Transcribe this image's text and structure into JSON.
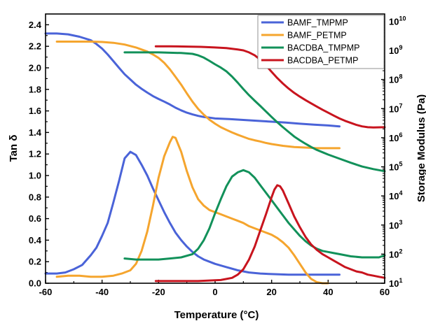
{
  "chart_data": {
    "type": "line",
    "xlabel": "Temperature (°C)",
    "ylabel": "Tan δ",
    "y2label": "Storage Modulus (Pa)",
    "xlim": [
      -60,
      60
    ],
    "ylim": [
      0,
      2.5
    ],
    "y2lim_log10": [
      1,
      10.25
    ],
    "x_ticks": [
      "-60",
      "-40",
      "-20",
      "0",
      "20",
      "40",
      "60"
    ],
    "y_ticks": [
      "0.0",
      "0.2",
      "0.4",
      "0.6",
      "0.8",
      "1.0",
      "1.2",
      "1.4",
      "1.6",
      "1.8",
      "2.0",
      "2.2",
      "2.4"
    ],
    "y2_ticks": [
      {
        "base": "10",
        "exp": "1"
      },
      {
        "base": "10",
        "exp": "2"
      },
      {
        "base": "10",
        "exp": "3"
      },
      {
        "base": "10",
        "exp": "4"
      },
      {
        "base": "10",
        "exp": "5"
      },
      {
        "base": "10",
        "exp": "6"
      },
      {
        "base": "10",
        "exp": "7"
      },
      {
        "base": "10",
        "exp": "8"
      },
      {
        "base": "10",
        "exp": "9"
      },
      {
        "base": "10",
        "exp": "10"
      }
    ],
    "legend_position": "top-right",
    "series": [
      {
        "name": "BAMF_TMPMP",
        "color": "#4a63d8",
        "tan_delta": [
          [
            -60,
            0.09
          ],
          [
            -56,
            0.09
          ],
          [
            -53,
            0.1
          ],
          [
            -50,
            0.13
          ],
          [
            -47,
            0.17
          ],
          [
            -44,
            0.26
          ],
          [
            -42,
            0.33
          ],
          [
            -40,
            0.44
          ],
          [
            -38,
            0.56
          ],
          [
            -36,
            0.75
          ],
          [
            -34,
            0.95
          ],
          [
            -32,
            1.16
          ],
          [
            -30,
            1.22
          ],
          [
            -28,
            1.19
          ],
          [
            -26,
            1.1
          ],
          [
            -24,
            1.0
          ],
          [
            -22,
            0.88
          ],
          [
            -20,
            0.77
          ],
          [
            -18,
            0.66
          ],
          [
            -16,
            0.56
          ],
          [
            -14,
            0.47
          ],
          [
            -12,
            0.4
          ],
          [
            -10,
            0.34
          ],
          [
            -8,
            0.29
          ],
          [
            -6,
            0.25
          ],
          [
            -4,
            0.22
          ],
          [
            -2,
            0.2
          ],
          [
            0,
            0.18
          ],
          [
            4,
            0.15
          ],
          [
            8,
            0.12
          ],
          [
            12,
            0.1
          ],
          [
            16,
            0.09
          ],
          [
            20,
            0.085
          ],
          [
            26,
            0.08
          ],
          [
            32,
            0.08
          ],
          [
            38,
            0.08
          ],
          [
            44,
            0.08
          ]
        ],
        "modulus_log10": [
          [
            -60,
            9.58
          ],
          [
            -56,
            9.58
          ],
          [
            -52,
            9.55
          ],
          [
            -48,
            9.47
          ],
          [
            -44,
            9.35
          ],
          [
            -42,
            9.22
          ],
          [
            -40,
            9.06
          ],
          [
            -38,
            8.86
          ],
          [
            -36,
            8.63
          ],
          [
            -34,
            8.4
          ],
          [
            -32,
            8.18
          ],
          [
            -30,
            8.0
          ],
          [
            -28,
            7.82
          ],
          [
            -26,
            7.68
          ],
          [
            -24,
            7.55
          ],
          [
            -22,
            7.43
          ],
          [
            -20,
            7.33
          ],
          [
            -18,
            7.24
          ],
          [
            -16,
            7.14
          ],
          [
            -14,
            7.03
          ],
          [
            -12,
            6.94
          ],
          [
            -10,
            6.86
          ],
          [
            -8,
            6.8
          ],
          [
            -6,
            6.75
          ],
          [
            -4,
            6.71
          ],
          [
            -2,
            6.69
          ],
          [
            0,
            6.66
          ],
          [
            5,
            6.64
          ],
          [
            10,
            6.61
          ],
          [
            15,
            6.58
          ],
          [
            20,
            6.55
          ],
          [
            25,
            6.52
          ],
          [
            30,
            6.48
          ],
          [
            35,
            6.45
          ],
          [
            40,
            6.42
          ],
          [
            44,
            6.39
          ]
        ]
      },
      {
        "name": "BAMF_PETMP",
        "color": "#f5a52e",
        "tan_delta": [
          [
            -56,
            0.06
          ],
          [
            -52,
            0.07
          ],
          [
            -48,
            0.07
          ],
          [
            -44,
            0.06
          ],
          [
            -40,
            0.06
          ],
          [
            -36,
            0.07
          ],
          [
            -33,
            0.09
          ],
          [
            -30,
            0.12
          ],
          [
            -28,
            0.18
          ],
          [
            -26,
            0.3
          ],
          [
            -24,
            0.48
          ],
          [
            -22,
            0.72
          ],
          [
            -20,
            0.98
          ],
          [
            -18,
            1.18
          ],
          [
            -16,
            1.31
          ],
          [
            -15,
            1.36
          ],
          [
            -14,
            1.35
          ],
          [
            -12,
            1.22
          ],
          [
            -10,
            1.04
          ],
          [
            -8,
            0.89
          ],
          [
            -6,
            0.78
          ],
          [
            -4,
            0.72
          ],
          [
            -2,
            0.68
          ],
          [
            0,
            0.66
          ],
          [
            2,
            0.64
          ],
          [
            4,
            0.62
          ],
          [
            6,
            0.6
          ],
          [
            8,
            0.58
          ],
          [
            10,
            0.56
          ],
          [
            12,
            0.53
          ],
          [
            14,
            0.51
          ],
          [
            16,
            0.49
          ],
          [
            18,
            0.47
          ],
          [
            20,
            0.45
          ],
          [
            22,
            0.42
          ],
          [
            24,
            0.38
          ],
          [
            26,
            0.33
          ],
          [
            28,
            0.26
          ],
          [
            30,
            0.18
          ],
          [
            32,
            0.1
          ],
          [
            34,
            0.04
          ],
          [
            36,
            0.01
          ],
          [
            38,
            0.0
          ],
          [
            40,
            0.0
          ]
        ],
        "modulus_log10": [
          [
            -56,
            9.3
          ],
          [
            -52,
            9.3
          ],
          [
            -48,
            9.3
          ],
          [
            -44,
            9.3
          ],
          [
            -40,
            9.29
          ],
          [
            -36,
            9.26
          ],
          [
            -32,
            9.2
          ],
          [
            -28,
            9.1
          ],
          [
            -26,
            9.03
          ],
          [
            -24,
            8.96
          ],
          [
            -22,
            8.86
          ],
          [
            -20,
            8.74
          ],
          [
            -18,
            8.57
          ],
          [
            -16,
            8.35
          ],
          [
            -14,
            8.09
          ],
          [
            -12,
            7.82
          ],
          [
            -10,
            7.52
          ],
          [
            -8,
            7.24
          ],
          [
            -6,
            6.99
          ],
          [
            -4,
            6.79
          ],
          [
            -2,
            6.62
          ],
          [
            0,
            6.48
          ],
          [
            2,
            6.36
          ],
          [
            4,
            6.27
          ],
          [
            6,
            6.18
          ],
          [
            8,
            6.1
          ],
          [
            10,
            6.03
          ],
          [
            12,
            5.96
          ],
          [
            14,
            5.91
          ],
          [
            16,
            5.87
          ],
          [
            18,
            5.82
          ],
          [
            20,
            5.78
          ],
          [
            24,
            5.72
          ],
          [
            28,
            5.68
          ],
          [
            32,
            5.66
          ],
          [
            36,
            5.64
          ],
          [
            40,
            5.64
          ],
          [
            44,
            5.64
          ]
        ]
      },
      {
        "name": "BACDBA_TMPMP",
        "color": "#12915a",
        "tan_delta": [
          [
            -32,
            0.23
          ],
          [
            -28,
            0.22
          ],
          [
            -24,
            0.22
          ],
          [
            -20,
            0.22
          ],
          [
            -16,
            0.23
          ],
          [
            -12,
            0.24
          ],
          [
            -8,
            0.27
          ],
          [
            -6,
            0.32
          ],
          [
            -4,
            0.4
          ],
          [
            -2,
            0.51
          ],
          [
            0,
            0.65
          ],
          [
            2,
            0.78
          ],
          [
            4,
            0.9
          ],
          [
            6,
            0.99
          ],
          [
            8,
            1.03
          ],
          [
            10,
            1.05
          ],
          [
            12,
            1.03
          ],
          [
            14,
            0.98
          ],
          [
            16,
            0.91
          ],
          [
            18,
            0.84
          ],
          [
            20,
            0.77
          ],
          [
            22,
            0.7
          ],
          [
            24,
            0.63
          ],
          [
            26,
            0.56
          ],
          [
            28,
            0.5
          ],
          [
            30,
            0.44
          ],
          [
            32,
            0.39
          ],
          [
            34,
            0.35
          ],
          [
            36,
            0.32
          ],
          [
            38,
            0.3
          ],
          [
            40,
            0.29
          ],
          [
            42,
            0.28
          ],
          [
            44,
            0.27
          ],
          [
            48,
            0.25
          ],
          [
            52,
            0.24
          ],
          [
            56,
            0.24
          ],
          [
            58,
            0.24
          ],
          [
            60,
            0.26
          ]
        ],
        "modulus_log10": [
          [
            -32,
            8.93
          ],
          [
            -28,
            8.93
          ],
          [
            -24,
            8.93
          ],
          [
            -20,
            8.93
          ],
          [
            -16,
            8.92
          ],
          [
            -12,
            8.91
          ],
          [
            -8,
            8.88
          ],
          [
            -6,
            8.83
          ],
          [
            -4,
            8.75
          ],
          [
            -2,
            8.64
          ],
          [
            0,
            8.52
          ],
          [
            2,
            8.41
          ],
          [
            4,
            8.28
          ],
          [
            6,
            8.1
          ],
          [
            8,
            7.89
          ],
          [
            10,
            7.67
          ],
          [
            12,
            7.46
          ],
          [
            14,
            7.27
          ],
          [
            16,
            7.09
          ],
          [
            18,
            6.9
          ],
          [
            20,
            6.71
          ],
          [
            22,
            6.53
          ],
          [
            24,
            6.36
          ],
          [
            26,
            6.2
          ],
          [
            28,
            6.04
          ],
          [
            30,
            5.91
          ],
          [
            32,
            5.79
          ],
          [
            34,
            5.68
          ],
          [
            36,
            5.58
          ],
          [
            38,
            5.5
          ],
          [
            40,
            5.42
          ],
          [
            44,
            5.28
          ],
          [
            48,
            5.14
          ],
          [
            52,
            5.01
          ],
          [
            56,
            4.92
          ],
          [
            60,
            4.85
          ]
        ]
      },
      {
        "name": "BACDBA_PETMP",
        "color": "#c8141e",
        "tan_delta": [
          [
            -21,
            0.02
          ],
          [
            -15,
            0.02
          ],
          [
            -10,
            0.02
          ],
          [
            -6,
            0.02
          ],
          [
            -2,
            0.025
          ],
          [
            2,
            0.03
          ],
          [
            6,
            0.05
          ],
          [
            8,
            0.08
          ],
          [
            10,
            0.13
          ],
          [
            12,
            0.22
          ],
          [
            14,
            0.34
          ],
          [
            16,
            0.49
          ],
          [
            18,
            0.64
          ],
          [
            20,
            0.8
          ],
          [
            21,
            0.87
          ],
          [
            22,
            0.91
          ],
          [
            23,
            0.9
          ],
          [
            24,
            0.86
          ],
          [
            26,
            0.74
          ],
          [
            28,
            0.62
          ],
          [
            30,
            0.52
          ],
          [
            32,
            0.43
          ],
          [
            34,
            0.36
          ],
          [
            36,
            0.31
          ],
          [
            38,
            0.27
          ],
          [
            40,
            0.24
          ],
          [
            42,
            0.21
          ],
          [
            44,
            0.18
          ],
          [
            46,
            0.15
          ],
          [
            48,
            0.13
          ],
          [
            50,
            0.11
          ],
          [
            52,
            0.1
          ],
          [
            54,
            0.08
          ],
          [
            56,
            0.07
          ],
          [
            58,
            0.06
          ],
          [
            60,
            0.05
          ]
        ],
        "modulus_log10": [
          [
            -21,
            9.14
          ],
          [
            -16,
            9.14
          ],
          [
            -10,
            9.13
          ],
          [
            -5,
            9.12
          ],
          [
            0,
            9.1
          ],
          [
            4,
            9.08
          ],
          [
            8,
            9.03
          ],
          [
            10,
            9.0
          ],
          [
            12,
            8.93
          ],
          [
            14,
            8.83
          ],
          [
            16,
            8.68
          ],
          [
            18,
            8.48
          ],
          [
            20,
            8.26
          ],
          [
            22,
            8.05
          ],
          [
            24,
            7.86
          ],
          [
            26,
            7.69
          ],
          [
            28,
            7.54
          ],
          [
            30,
            7.41
          ],
          [
            32,
            7.29
          ],
          [
            34,
            7.18
          ],
          [
            36,
            7.07
          ],
          [
            38,
            6.96
          ],
          [
            40,
            6.86
          ],
          [
            42,
            6.76
          ],
          [
            44,
            6.66
          ],
          [
            46,
            6.58
          ],
          [
            48,
            6.51
          ],
          [
            50,
            6.44
          ],
          [
            52,
            6.39
          ],
          [
            54,
            6.36
          ],
          [
            56,
            6.35
          ],
          [
            60,
            6.36
          ]
        ]
      }
    ]
  }
}
